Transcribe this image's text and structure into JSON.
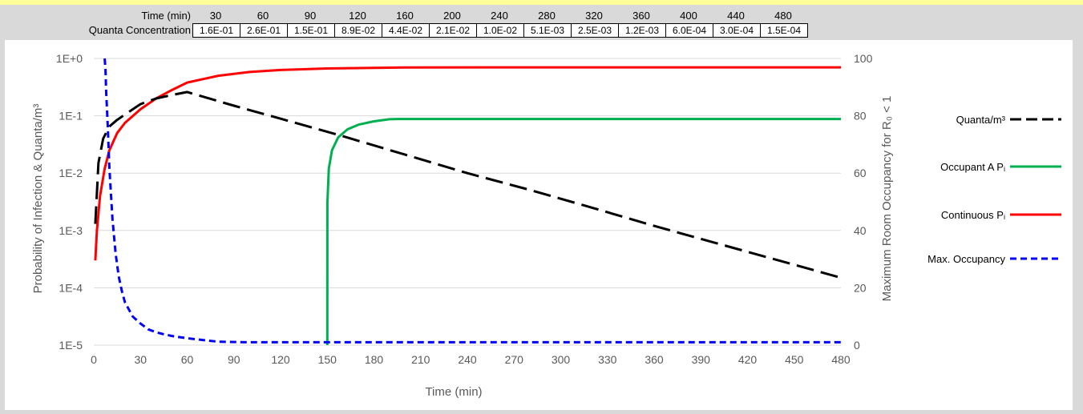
{
  "table": {
    "time_label": "Time (min)",
    "conc_label": "Quanta Concentration",
    "times": [
      "30",
      "60",
      "90",
      "120",
      "160",
      "200",
      "240",
      "280",
      "320",
      "360",
      "400",
      "440",
      "480"
    ],
    "concentrations": [
      "1.6E-01",
      "2.6E-01",
      "1.5E-01",
      "8.9E-02",
      "4.4E-02",
      "2.1E-02",
      "1.0E-02",
      "5.1E-03",
      "2.5E-03",
      "1.2E-03",
      "6.0E-04",
      "3.0E-04",
      "1.5E-04"
    ]
  },
  "chart_data": {
    "type": "line",
    "xlabel": "Time (min)",
    "ylabel_left": "Probability of Infection & Quanta/m³",
    "ylabel_right": "Maximum Room Occupancy for R₀ < 1",
    "xlim": [
      0,
      480
    ],
    "x_ticks": [
      "0",
      "30",
      "60",
      "90",
      "120",
      "150",
      "180",
      "210",
      "240",
      "270",
      "300",
      "330",
      "360",
      "390",
      "420",
      "450",
      "480"
    ],
    "y_left_scale": "log",
    "y_left_ticks": [
      "1E+0",
      "1E-1",
      "1E-2",
      "1E-3",
      "1E-4",
      "1E-5"
    ],
    "y_left_lim": [
      1e-05,
      1
    ],
    "y_right_ticks": [
      "100",
      "80",
      "60",
      "40",
      "20",
      "0"
    ],
    "y_right_lim": [
      0,
      100
    ],
    "grid": "horizontal",
    "legend_position": "right",
    "series": [
      {
        "name": "Quanta/m³",
        "axis": "left",
        "color": "#000000",
        "style": "long-dash",
        "x": [
          1,
          3,
          6,
          10,
          15,
          20,
          30,
          40,
          50,
          60,
          90,
          120,
          160,
          200,
          240,
          280,
          320,
          360,
          400,
          440,
          480
        ],
        "y": [
          0.0013,
          0.015,
          0.04,
          0.065,
          0.085,
          0.105,
          0.16,
          0.2,
          0.23,
          0.26,
          0.15,
          0.089,
          0.044,
          0.021,
          0.01,
          0.0051,
          0.0025,
          0.0012,
          0.0006,
          0.0003,
          0.00015
        ]
      },
      {
        "name": "Occupant A Pᵢ",
        "axis": "left",
        "color": "#00b050",
        "style": "solid",
        "x": [
          150,
          150.1,
          151,
          153,
          157,
          163,
          170,
          180,
          190,
          195,
          200,
          480
        ],
        "y": [
          1e-05,
          0.003,
          0.012,
          0.025,
          0.042,
          0.058,
          0.07,
          0.08,
          0.087,
          0.088,
          0.088,
          0.088
        ]
      },
      {
        "name": "Continuous Pᵢ",
        "axis": "left",
        "color": "#ff0000",
        "style": "solid",
        "x": [
          1,
          2,
          4,
          7,
          10,
          15,
          20,
          30,
          40,
          50,
          60,
          80,
          100,
          120,
          150,
          200,
          250,
          300,
          400,
          480
        ],
        "y": [
          0.0003,
          0.001,
          0.004,
          0.012,
          0.025,
          0.05,
          0.075,
          0.13,
          0.2,
          0.28,
          0.38,
          0.5,
          0.58,
          0.63,
          0.67,
          0.695,
          0.7,
          0.7,
          0.7,
          0.7
        ]
      },
      {
        "name": "Max. Occupancy",
        "axis": "right",
        "color": "#0000ff",
        "style": "short-dash",
        "x": [
          7,
          7.5,
          8,
          9,
          10,
          12,
          14,
          16,
          18,
          20,
          25,
          30,
          35,
          40,
          45,
          50,
          55,
          60,
          70,
          80,
          100,
          150,
          200,
          300,
          400,
          480
        ],
        "y": [
          100,
          96,
          88,
          76,
          62,
          44,
          32,
          24,
          19,
          15,
          10,
          7.5,
          5.5,
          4.5,
          3.8,
          3.2,
          2.8,
          2.4,
          1.8,
          1.2,
          1,
          1,
          1,
          1,
          1,
          1
        ]
      }
    ]
  }
}
